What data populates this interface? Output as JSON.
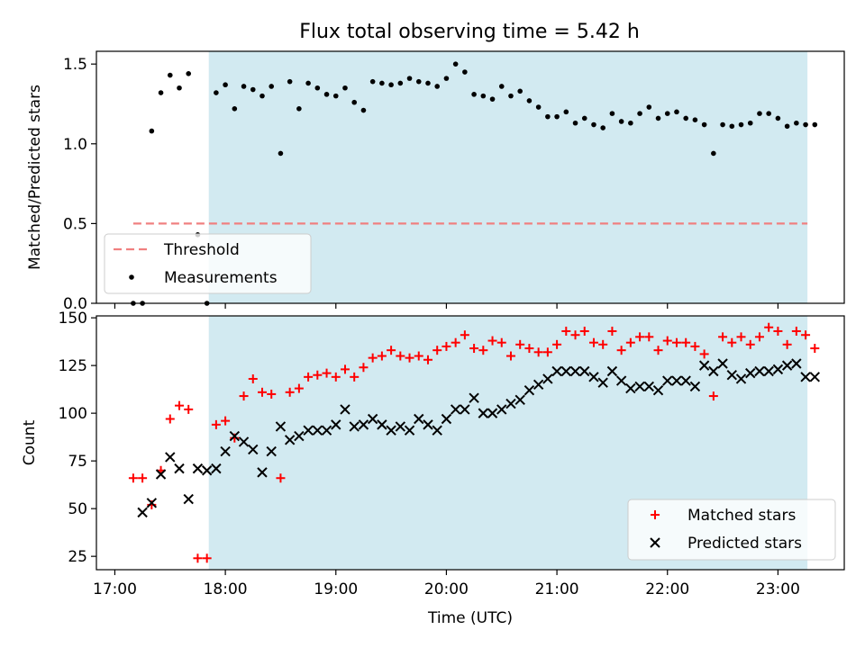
{
  "title": "Flux total observing time = 5.42 h",
  "colors": {
    "shade": "#add8e6",
    "threshold": "#f08080",
    "measurements": "#000000",
    "matched": "#ff0000",
    "predicted": "#000000"
  },
  "chart_data": [
    {
      "type": "scatter",
      "panel": "top",
      "ylabel": "Matched/Predicted stars",
      "xlabel": "",
      "ylim": [
        0,
        1.58
      ],
      "yticks": [
        0.0,
        0.5,
        1.0,
        1.5
      ],
      "ytick_labels": [
        "0.0",
        "0.5",
        "1.0",
        "1.5"
      ],
      "xlim": [
        "16:50",
        "23:36"
      ],
      "shaded_region": [
        "17:51",
        "23:16"
      ],
      "grid": false,
      "legend_position": "lower-left",
      "legend": [
        "Threshold",
        "Measurements"
      ],
      "threshold": {
        "name": "Threshold",
        "value": 0.5,
        "x": [
          "17:10",
          "23:16"
        ]
      },
      "series": [
        {
          "name": "Measurements",
          "x": [
            "17:10",
            "17:15",
            "17:20",
            "17:25",
            "17:30",
            "17:35",
            "17:40",
            "17:45",
            "17:50",
            "17:55",
            "18:00",
            "18:05",
            "18:10",
            "18:15",
            "18:20",
            "18:25",
            "18:30",
            "18:35",
            "18:40",
            "18:45",
            "18:50",
            "18:55",
            "19:00",
            "19:05",
            "19:10",
            "19:15",
            "19:20",
            "19:25",
            "19:30",
            "19:35",
            "19:40",
            "19:45",
            "19:50",
            "19:55",
            "20:00",
            "20:05",
            "20:10",
            "20:15",
            "20:20",
            "20:25",
            "20:30",
            "20:35",
            "20:40",
            "20:45",
            "20:50",
            "20:55",
            "21:00",
            "21:05",
            "21:10",
            "21:15",
            "21:20",
            "21:25",
            "21:30",
            "21:35",
            "21:40",
            "21:45",
            "21:50",
            "21:55",
            "22:00",
            "22:05",
            "22:10",
            "22:15",
            "22:20",
            "22:25",
            "22:30",
            "22:35",
            "22:40",
            "22:45",
            "22:50",
            "22:55",
            "23:00",
            "23:05",
            "23:10",
            "23:15",
            "23:20"
          ],
          "y": [
            0.0,
            0.0,
            1.08,
            1.32,
            1.43,
            1.35,
            1.44,
            0.43,
            0.0,
            1.32,
            1.37,
            1.22,
            1.36,
            1.34,
            1.3,
            1.36,
            0.94,
            1.39,
            1.22,
            1.38,
            1.35,
            1.31,
            1.3,
            1.35,
            1.26,
            1.21,
            1.39,
            1.38,
            1.37,
            1.38,
            1.41,
            1.39,
            1.38,
            1.36,
            1.41,
            1.5,
            1.45,
            1.31,
            1.3,
            1.28,
            1.36,
            1.3,
            1.33,
            1.27,
            1.23,
            1.17,
            1.17,
            1.2,
            1.13,
            1.16,
            1.12,
            1.1,
            1.19,
            1.14,
            1.13,
            1.19,
            1.23,
            1.16,
            1.19,
            1.2,
            1.16,
            1.15,
            1.12,
            0.94,
            1.12,
            1.11,
            1.12,
            1.13,
            1.19,
            1.19,
            1.16,
            1.11,
            1.13,
            1.12,
            1.12
          ]
        }
      ]
    },
    {
      "type": "scatter",
      "panel": "bottom",
      "ylabel": "Count",
      "xlabel": "Time (UTC)",
      "ylim": [
        18,
        151
      ],
      "yticks": [
        25,
        50,
        75,
        100,
        125,
        150
      ],
      "xlim": [
        "16:50",
        "23:36"
      ],
      "xticks": [
        "17:00",
        "18:00",
        "19:00",
        "20:00",
        "21:00",
        "22:00",
        "23:00"
      ],
      "shaded_region": [
        "17:51",
        "23:16"
      ],
      "grid": false,
      "legend_position": "lower-right",
      "legend": [
        "Matched stars",
        "Predicted stars"
      ],
      "series": [
        {
          "name": "Matched stars",
          "marker": "+",
          "x": [
            "17:10",
            "17:15",
            "17:20",
            "17:25",
            "17:30",
            "17:35",
            "17:40",
            "17:45",
            "17:50",
            "17:55",
            "18:00",
            "18:05",
            "18:10",
            "18:15",
            "18:20",
            "18:25",
            "18:30",
            "18:35",
            "18:40",
            "18:45",
            "18:50",
            "18:55",
            "19:00",
            "19:05",
            "19:10",
            "19:15",
            "19:20",
            "19:25",
            "19:30",
            "19:35",
            "19:40",
            "19:45",
            "19:50",
            "19:55",
            "20:00",
            "20:05",
            "20:10",
            "20:15",
            "20:20",
            "20:25",
            "20:30",
            "20:35",
            "20:40",
            "20:45",
            "20:50",
            "20:55",
            "21:00",
            "21:05",
            "21:10",
            "21:15",
            "21:20",
            "21:25",
            "21:30",
            "21:35",
            "21:40",
            "21:45",
            "21:50",
            "21:55",
            "22:00",
            "22:05",
            "22:10",
            "22:15",
            "22:20",
            "22:25",
            "22:30",
            "22:35",
            "22:40",
            "22:45",
            "22:50",
            "22:55",
            "23:00",
            "23:05",
            "23:10",
            "23:15",
            "23:20"
          ],
          "y": [
            66,
            66,
            52,
            70,
            97,
            104,
            102,
            24,
            24,
            94,
            96,
            87,
            109,
            118,
            111,
            110,
            66,
            111,
            113,
            119,
            120,
            121,
            119,
            123,
            119,
            124,
            129,
            130,
            133,
            130,
            129,
            130,
            128,
            133,
            135,
            137,
            141,
            134,
            133,
            138,
            137,
            130,
            136,
            134,
            132,
            132,
            136,
            143,
            141,
            143,
            137,
            136,
            143,
            133,
            137,
            140,
            140,
            133,
            138,
            137,
            137,
            135,
            131,
            109,
            140,
            137,
            140,
            136,
            140,
            145,
            143,
            136,
            143,
            141,
            134
          ]
        },
        {
          "name": "Predicted stars",
          "marker": "x",
          "x": [
            "17:15",
            "17:20",
            "17:25",
            "17:30",
            "17:35",
            "17:40",
            "17:45",
            "17:50",
            "17:55",
            "18:00",
            "18:05",
            "18:10",
            "18:15",
            "18:20",
            "18:25",
            "18:30",
            "18:35",
            "18:40",
            "18:45",
            "18:50",
            "18:55",
            "19:00",
            "19:05",
            "19:10",
            "19:15",
            "19:20",
            "19:25",
            "19:30",
            "19:35",
            "19:40",
            "19:45",
            "19:50",
            "19:55",
            "20:00",
            "20:05",
            "20:10",
            "20:15",
            "20:20",
            "20:25",
            "20:30",
            "20:35",
            "20:40",
            "20:45",
            "20:50",
            "20:55",
            "21:00",
            "21:05",
            "21:10",
            "21:15",
            "21:20",
            "21:25",
            "21:30",
            "21:35",
            "21:40",
            "21:45",
            "21:50",
            "21:55",
            "22:00",
            "22:05",
            "22:10",
            "22:15",
            "22:20",
            "22:25",
            "22:30",
            "22:35",
            "22:40",
            "22:45",
            "22:50",
            "22:55",
            "23:00",
            "23:05",
            "23:10",
            "23:15",
            "23:20"
          ],
          "y": [
            48,
            53,
            68,
            77,
            71,
            55,
            71,
            70,
            71,
            80,
            88,
            85,
            81,
            69,
            80,
            93,
            86,
            88,
            91,
            91,
            91,
            94,
            102,
            93,
            94,
            97,
            94,
            91,
            93,
            91,
            97,
            94,
            91,
            97,
            102,
            102,
            108,
            100,
            100,
            102,
            105,
            107,
            112,
            115,
            118,
            122,
            122,
            122,
            122,
            119,
            116,
            122,
            117,
            113,
            114,
            114,
            112,
            117,
            117,
            117,
            114,
            125,
            122,
            126,
            120,
            118,
            121,
            122,
            122,
            123,
            125,
            126,
            119,
            119
          ]
        }
      ]
    }
  ]
}
